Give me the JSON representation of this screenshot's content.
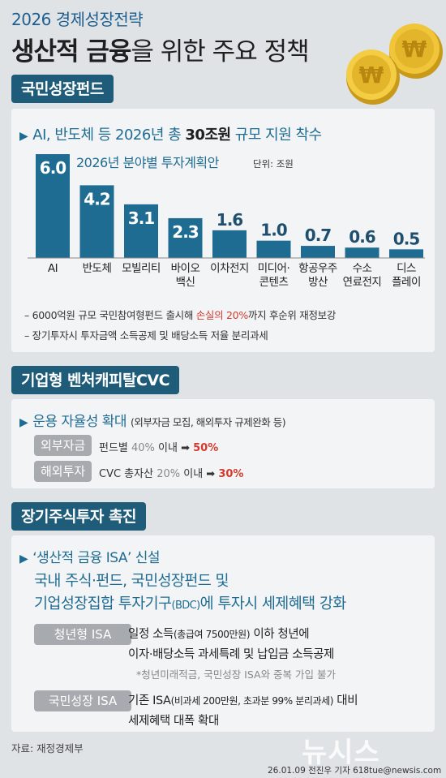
{
  "header": {
    "subtitle": "2026 경제성장전략",
    "title_bold": "생산적 금융",
    "title_rest": "을 위한 주요 정책"
  },
  "section1": {
    "badge": "국민성장펀드",
    "headline_pre": "AI, 반도체 등 2026년 총 ",
    "headline_bold": "30조원",
    "headline_post": " 규모 지원 착수",
    "notes": [
      {
        "pre": "– 6000억원 규모 국민참여형펀드 출시해 ",
        "red": "손실의 20%",
        "post": "까지 후순위 재정보강"
      },
      {
        "pre": "– 장기투자시 투자금액 소득공제 및 배당소득 저율 분리과세",
        "red": "",
        "post": ""
      }
    ]
  },
  "chart_data": {
    "type": "bar",
    "title": "2026년 분야별 투자계획안",
    "unit": "단위: 조원",
    "categories": [
      "AI",
      "반도체",
      "모빌리티",
      "바이오\n백신",
      "이차전지",
      "미디어·\n콘텐츠",
      "항공우주\n방산",
      "수소\n연료전지",
      "디스\n플레이"
    ],
    "values": [
      6.0,
      4.2,
      3.1,
      2.3,
      1.6,
      1.0,
      0.7,
      0.6,
      0.5
    ],
    "value_labels": [
      "6.0",
      "4.2",
      "3.1",
      "2.3",
      "1.6",
      "1.0",
      "0.7",
      "0.6",
      "0.5"
    ],
    "ylim": [
      0,
      6
    ],
    "colors": {
      "bar": "#1f6c93",
      "label_inside": "#ffffff",
      "label_outside": "#1f4f6e"
    }
  },
  "section2": {
    "badge": "기업형 벤처캐피탈CVC",
    "headline": "운용 자율성 확대",
    "headline_small": "(외부자금 모집, 해외투자 규제완화 등)",
    "rows": [
      {
        "pill": "외부자금",
        "text": "펀드별 ",
        "gray": "40%",
        "mid": " 이내 ➡ ",
        "red": "50%"
      },
      {
        "pill": "해외투자",
        "text": "CVC 총자산 ",
        "gray": "20%",
        "mid": " 이내 ➡ ",
        "red": "30%"
      }
    ]
  },
  "section3": {
    "badge": "장기주식투자 촉진",
    "headline": "‘생산적 금융 ISA’ 신설",
    "line1": "국내 주식·펀드, 국민성장펀드 및",
    "line2_pre": "기업성장집합 투자기구",
    "line2_small": "(BDC)",
    "line2_post": "에 투자시 세제혜택 강화",
    "isa": [
      {
        "pill": "청년형 ISA",
        "l1_pre": "일정 소득",
        "l1_small": "(총급여 7500만원)",
        "l1_post": " 이하 청년에",
        "l2": "이자·배당소득 과세특례 및 납입금 소득공제",
        "note": "*청년미래적금, 국민성장 ISA와 중복 가입 불가"
      },
      {
        "pill": "국민성장 ISA",
        "l1_pre": "기존 ISA",
        "l1_small": "(비과세 200만원, 초과분 99% 분리과세)",
        "l1_post": " 대비",
        "l2": "세제혜택 대폭 확대",
        "note": ""
      }
    ]
  },
  "footer": {
    "source": "자료: 재정경제부",
    "watermark": "뉴시스",
    "credit": "26.01.09 전진우 기자 618tue@newsis.com"
  },
  "colors": {
    "accent": "#1f6c93",
    "badge": "#1f5c7a",
    "panel": "#f3f4f5",
    "background": "#dfe3e6",
    "coin": "#e3b52a",
    "highlight": "#d23b2e"
  }
}
